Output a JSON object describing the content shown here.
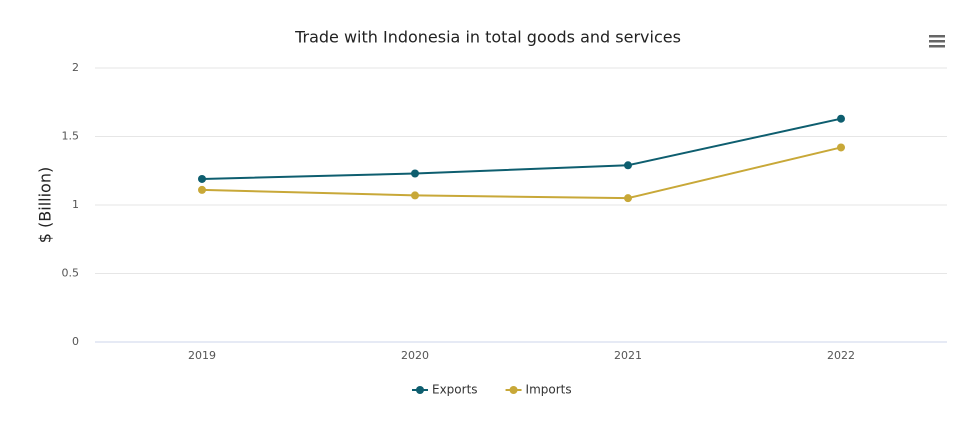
{
  "chart_data": {
    "type": "line",
    "title": "Trade with Indonesia in total goods and services",
    "y_label": "$ (Billion)",
    "categories": [
      "2019",
      "2020",
      "2021",
      "2022"
    ],
    "series": [
      {
        "name": "Exports",
        "color": "#0e5e6f",
        "values": [
          1.19,
          1.23,
          1.29,
          1.63
        ]
      },
      {
        "name": "Imports",
        "color": "#c8a838",
        "values": [
          1.11,
          1.07,
          1.05,
          1.42
        ]
      }
    ],
    "ylim": [
      0,
      2
    ],
    "yticks": [
      0,
      0.5,
      1,
      1.5,
      2
    ],
    "grid": true,
    "legend": "bottom"
  }
}
